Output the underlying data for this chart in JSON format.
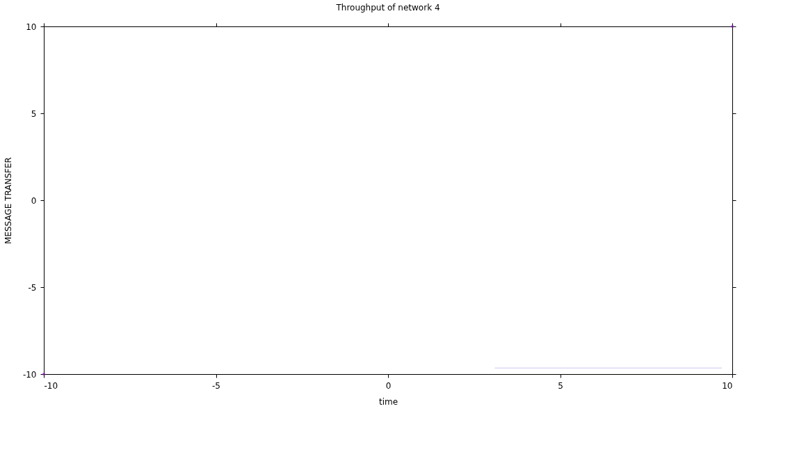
{
  "chart_data": {
    "type": "scatter",
    "title": "Throughput of network 4",
    "xlabel": "time",
    "ylabel": "MESSAGE TRANSFER",
    "xlim": [
      -10,
      10
    ],
    "ylim": [
      -10,
      10
    ],
    "xticks": [
      -10,
      -5,
      0,
      5,
      10
    ],
    "yticks": [
      -10,
      -5,
      0,
      5,
      10
    ],
    "grid": false,
    "marker": "square",
    "series": [
      {
        "color": "#9400d3",
        "x": [
          -10,
          10
        ],
        "values": [
          -10,
          10
        ]
      },
      {
        "type": "line",
        "color": "#c8c8f0",
        "x": [
          3.1,
          9.7
        ],
        "values": [
          -9.65,
          -9.65
        ],
        "line_style": "solid",
        "marker": "none"
      }
    ]
  }
}
